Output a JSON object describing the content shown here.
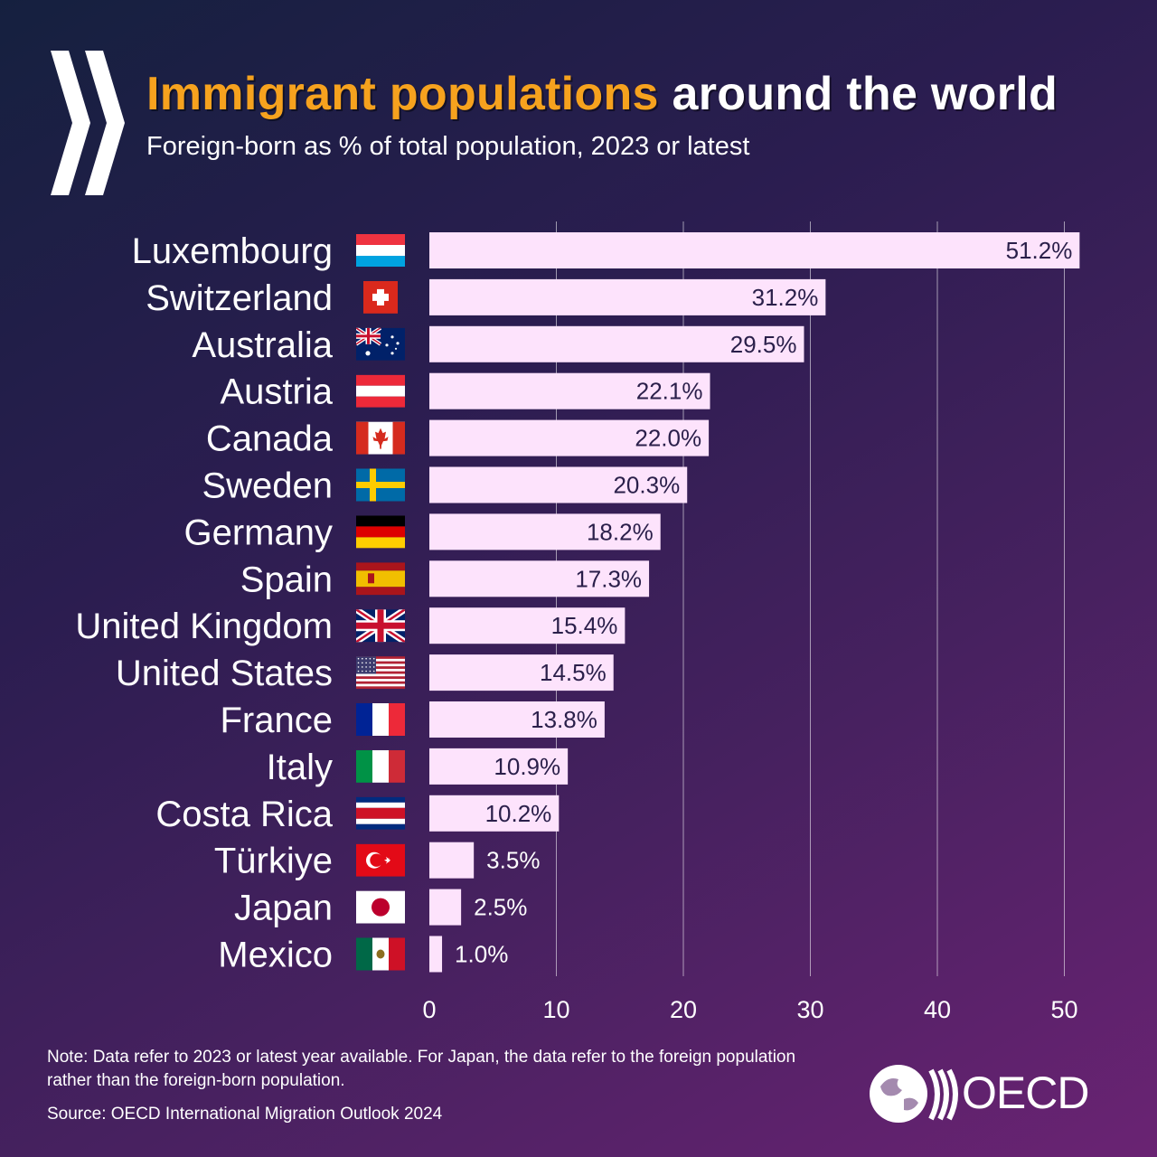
{
  "header": {
    "title_highlight": "Immigrant populations",
    "title_rest": "around the world",
    "subtitle": "Foreign-born as % of total population, 2023 or latest"
  },
  "chart_data": {
    "type": "bar",
    "orientation": "horizontal",
    "title": "Immigrant populations around the world",
    "subtitle": "Foreign-born as % of total population, 2023 or latest",
    "categories": [
      "Luxembourg",
      "Switzerland",
      "Australia",
      "Austria",
      "Canada",
      "Sweden",
      "Germany",
      "Spain",
      "United Kingdom",
      "United States",
      "France",
      "Italy",
      "Costa Rica",
      "Türkiye",
      "Japan",
      "Mexico"
    ],
    "values": [
      51.2,
      31.2,
      29.5,
      22.1,
      22.0,
      20.3,
      18.2,
      17.3,
      15.4,
      14.5,
      13.8,
      10.9,
      10.2,
      3.5,
      2.5,
      1.0
    ],
    "value_labels": [
      "51.2%",
      "31.2%",
      "29.5%",
      "22.1%",
      "22.0%",
      "20.3%",
      "18.2%",
      "17.3%",
      "15.4%",
      "14.5%",
      "13.8%",
      "10.9%",
      "10.2%",
      "3.5%",
      "2.5%",
      "1.0%"
    ],
    "flags": [
      "luxembourg-flag-icon",
      "switzerland-flag-icon",
      "australia-flag-icon",
      "austria-flag-icon",
      "canada-flag-icon",
      "sweden-flag-icon",
      "germany-flag-icon",
      "spain-flag-icon",
      "united-kingdom-flag-icon",
      "united-states-flag-icon",
      "france-flag-icon",
      "italy-flag-icon",
      "costa-rica-flag-icon",
      "turkiye-flag-icon",
      "japan-flag-icon",
      "mexico-flag-icon"
    ],
    "xticks": [
      0,
      10,
      20,
      30,
      40,
      50
    ],
    "xtick_labels": [
      "0",
      "10",
      "20",
      "30",
      "40",
      "50"
    ],
    "xlim": [
      0,
      52
    ],
    "grid": true,
    "xlabel": "",
    "ylabel": "",
    "bar_color": "#fde3fc",
    "value_label_color_inside": "#2a1f4a",
    "value_label_color_outside": "#ffffff"
  },
  "footer": {
    "note": "Note: Data refer to 2023 or latest year available. For Japan, the data refer to the foreign population rather than the foreign-born population.",
    "source": "Source: OECD International Migration Outlook 2024",
    "logo_text": "OECD"
  },
  "colors": {
    "title_highlight": "#f6a21e",
    "background_start": "#15203f",
    "background_end": "#6a2373"
  }
}
